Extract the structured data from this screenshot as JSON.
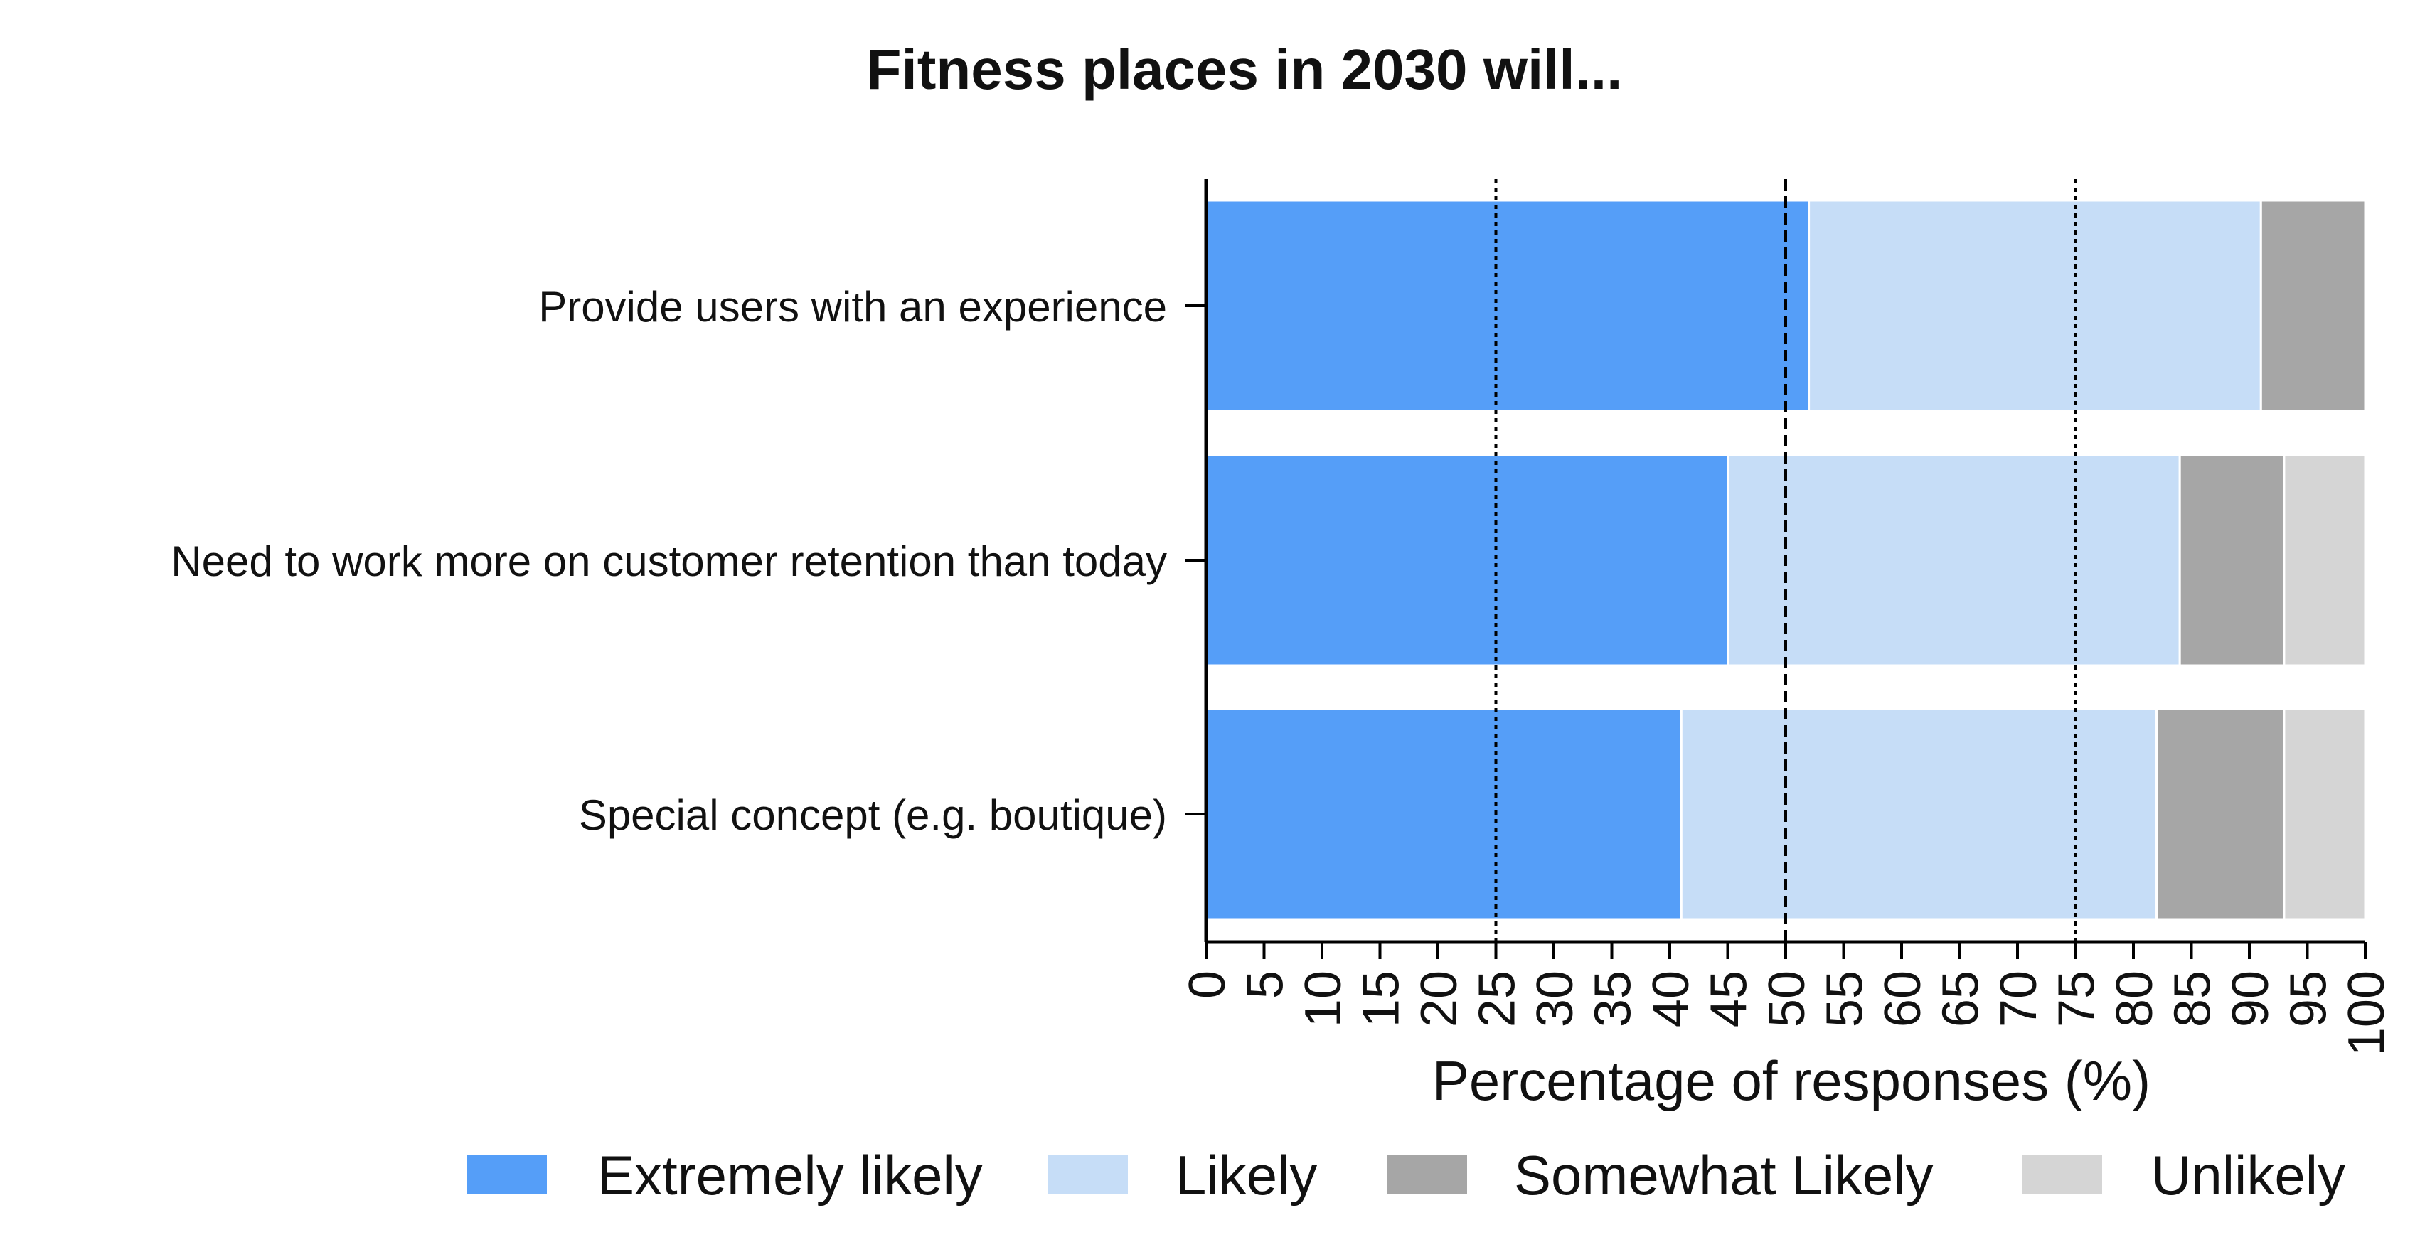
{
  "chart_data": {
    "type": "bar",
    "stacked": true,
    "orientation": "horizontal",
    "title": "Fitness places in 2030 will...",
    "xlabel": "Percentage of responses (%)",
    "ylabel": "",
    "xlim": [
      0,
      100
    ],
    "x_ticks": [
      "0",
      "5",
      "10",
      "15",
      "20",
      "25",
      "30",
      "35",
      "40",
      "45",
      "50",
      "55",
      "60",
      "65",
      "70",
      "75",
      "80",
      "85",
      "90",
      "95",
      "100"
    ],
    "reference_lines": [
      25,
      50,
      75
    ],
    "categories": [
      "Provide users with an experience",
      "Need to work more on customer retention than today",
      "Special concept (e.g. boutique)"
    ],
    "series": [
      {
        "name": "Extremely likely",
        "color": "#559ef8",
        "values": [
          52,
          45,
          41
        ]
      },
      {
        "name": "Likely",
        "color": "#c6ddf7",
        "values": [
          39,
          39,
          41
        ]
      },
      {
        "name": "Somewhat Likely",
        "color": "#a6a6a6",
        "values": [
          9,
          9,
          11
        ]
      },
      {
        "name": "Unlikely",
        "color": "#d5d5d5",
        "values": [
          0,
          7,
          7
        ]
      }
    ],
    "legend_position": "bottom",
    "grid": false
  }
}
